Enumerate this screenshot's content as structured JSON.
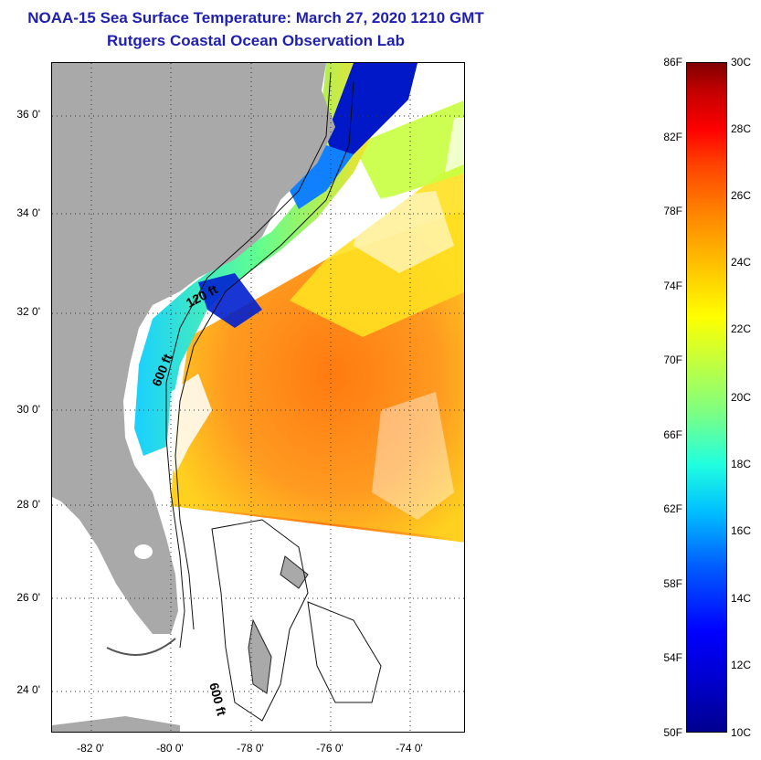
{
  "header": {
    "title": "NOAA-15 Sea Surface Temperature:  March 27, 2020 1210 GMT",
    "subtitle": "Rutgers Coastal Ocean Observation Lab"
  },
  "map": {
    "latitude_labels": [
      "36 0'",
      "34 0'",
      "32 0'",
      "30 0'",
      "28 0'",
      "26 0'",
      "24 0'"
    ],
    "longitude_labels": [
      "-82 0'",
      "-80 0'",
      "-78 0'",
      "-76 0'",
      "-74 0'"
    ],
    "contour_labels": [
      "120 ft",
      "600 ft",
      "600 ft"
    ],
    "colors": {
      "land": "#a9a9a9",
      "ocean_warm": "#ff8a1a",
      "ocean_mid": "#ffd21a",
      "ocean_cool": "#1ac8ff",
      "ocean_cold": "#0010c0",
      "cloud": "#ffffff"
    }
  },
  "colorbar": {
    "fahrenheit_labels": [
      "86F",
      "82F",
      "78F",
      "74F",
      "70F",
      "66F",
      "62F",
      "58F",
      "54F",
      "50F"
    ],
    "celsius_labels": [
      "30C",
      "28C",
      "26C",
      "24C",
      "22C",
      "20C",
      "18C",
      "16C",
      "14C",
      "12C",
      "10C"
    ]
  }
}
